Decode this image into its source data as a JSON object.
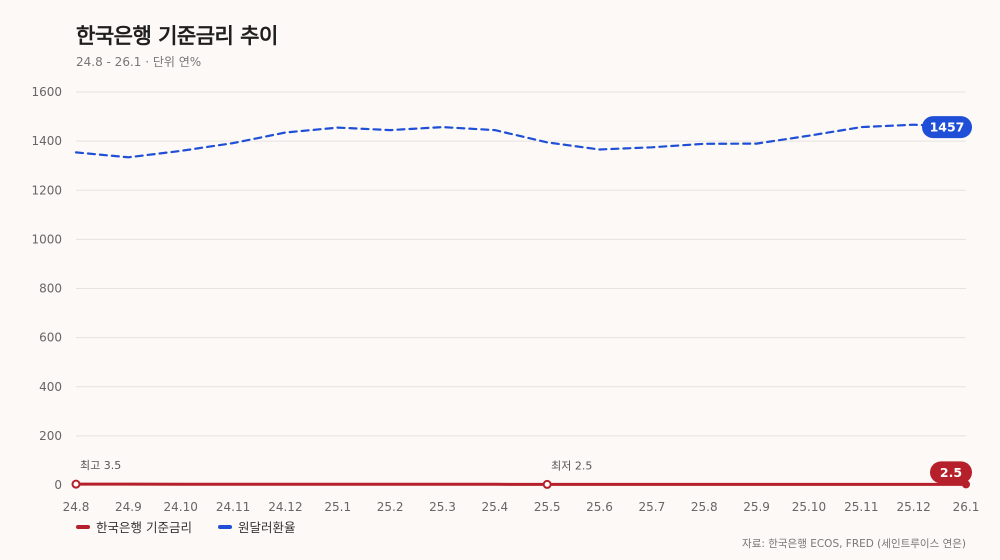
{
  "title": "한국은행 기준금리 추이",
  "subtitle": "24.8 - 26.1 · 단위 연%",
  "source": "자료: 한국은행 ECOS, FRED (세인트루이스 연은)",
  "colors": {
    "rate": "#b5202a",
    "fx": "#1f4fd6",
    "grid": "#e6e2df",
    "axis_text": "#666"
  },
  "chart_data": {
    "type": "line",
    "categories": [
      "24.8",
      "24.9",
      "24.10",
      "24.11",
      "24.12",
      "25.1",
      "25.2",
      "25.3",
      "25.4",
      "25.5",
      "25.6",
      "25.7",
      "25.8",
      "25.9",
      "25.10",
      "25.11",
      "25.12",
      "26.1"
    ],
    "ylim": [
      0,
      1600
    ],
    "yticks": [
      0,
      200,
      400,
      600,
      800,
      1000,
      1200,
      1400,
      1600
    ],
    "grid": true,
    "legend_position": "bottom-left",
    "series": [
      {
        "name": "한국은행 기준금리",
        "style": "solid",
        "values": [
          3.5,
          3.5,
          3.25,
          3.25,
          3.0,
          3.0,
          2.75,
          2.75,
          2.75,
          2.5,
          2.5,
          2.5,
          2.5,
          2.5,
          2.5,
          2.5,
          2.5,
          2.5
        ],
        "end_label": "2.5"
      },
      {
        "name": "원달러환율",
        "style": "dashed",
        "values": [
          1354,
          1334,
          1360,
          1392,
          1435,
          1455,
          1445,
          1457,
          1445,
          1395,
          1366,
          1375,
          1389,
          1390,
          1422,
          1457,
          1467,
          1457
        ],
        "end_label": "1457"
      }
    ],
    "annotations": [
      {
        "text": "최고 3.5",
        "category": "24.8",
        "series": 0
      },
      {
        "text": "최저 2.5",
        "category": "25.5",
        "series": 0
      }
    ]
  }
}
